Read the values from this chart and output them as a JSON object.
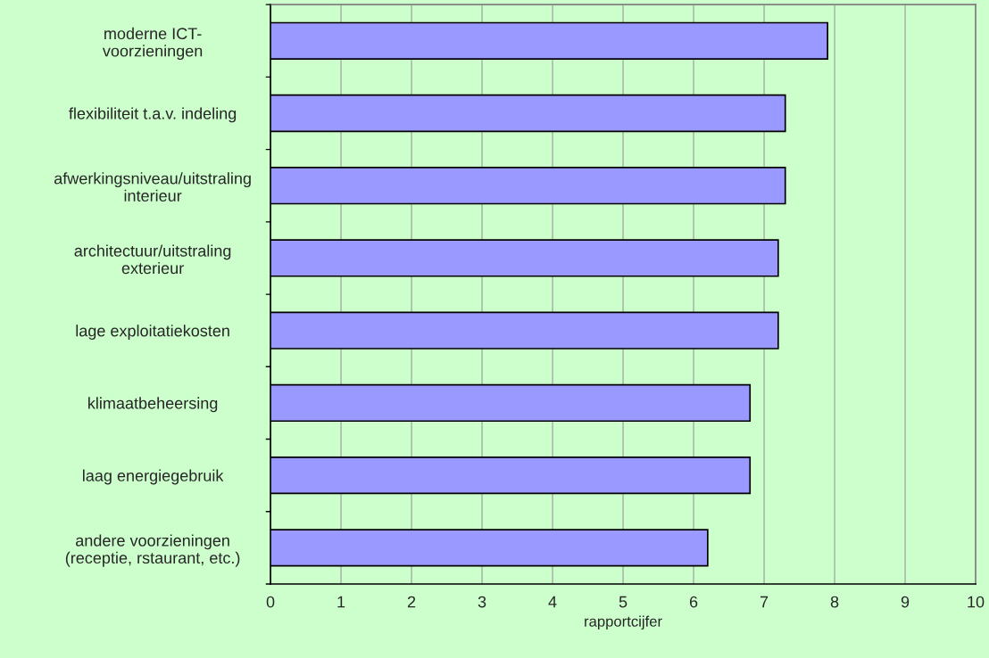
{
  "chart_data": {
    "type": "bar",
    "orientation": "horizontal",
    "categories": [
      "moderne ICT-\nvoorzieningen",
      "flexibiliteit t.a.v. indeling",
      "afwerkingsniveau/uitstraling\ninterieur",
      "architectuur/uitstraling\nexterieur",
      "lage exploitatiekosten",
      "klimaatbeheersing",
      "laag energiegebruik",
      "andere voorzieningen\n(receptie, rstaurant, etc.)"
    ],
    "values": [
      7.9,
      7.3,
      7.3,
      7.2,
      7.2,
      6.8,
      6.8,
      6.2
    ],
    "color": "#9999ff",
    "xlabel": "rapportcijfer",
    "xlim": [
      0,
      10
    ],
    "xticks": [
      0,
      1,
      2,
      3,
      4,
      5,
      6,
      7,
      8,
      9,
      10
    ],
    "grid": "x"
  }
}
